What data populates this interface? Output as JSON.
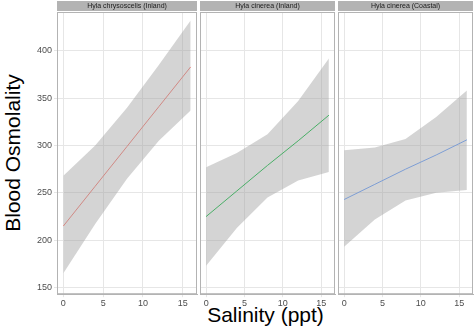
{
  "x_label": "Salinity (ppt)",
  "y_label": "Blood Osmolality",
  "chart_data": [
    {
      "type": "line",
      "title": "Hyla chrysoscelis (Inland)",
      "x": [
        0,
        4,
        8,
        12,
        16
      ],
      "values": [
        215,
        257,
        299,
        341,
        383
      ],
      "lower": [
        165,
        217,
        265,
        305,
        337
      ],
      "upper": [
        268,
        300,
        340,
        385,
        432
      ],
      "color": "#F8766D",
      "xlim": [
        -0.8,
        16.8
      ],
      "ylim": [
        143,
        441
      ],
      "xticks": [
        0,
        5,
        10,
        15
      ],
      "yticks": [
        150,
        200,
        250,
        300,
        350,
        400
      ],
      "grid": true
    },
    {
      "type": "line",
      "title": "Hyla cinerea (Inland)",
      "x": [
        0,
        4,
        8,
        12,
        16
      ],
      "values": [
        225,
        252,
        279,
        305,
        332
      ],
      "lower": [
        173,
        213,
        245,
        263,
        272
      ],
      "upper": [
        277,
        292,
        312,
        347,
        392
      ],
      "color": "#00BA38",
      "xlim": [
        -0.8,
        16.8
      ],
      "ylim": [
        143,
        441
      ],
      "xticks": [
        0,
        5,
        10,
        15
      ],
      "yticks": [
        150,
        200,
        250,
        300,
        350,
        400
      ],
      "grid": true,
      "tick_labels": "x"
    },
    {
      "type": "line",
      "title": "Hyla cinerea (Coastal)",
      "x": [
        0,
        4,
        8,
        12,
        16
      ],
      "values": [
        243,
        259,
        275,
        290,
        306
      ],
      "lower": [
        193,
        222,
        242,
        250,
        253
      ],
      "upper": [
        295,
        298,
        307,
        330,
        358
      ],
      "color": "#619CFF",
      "xlim": [
        -0.8,
        16.8
      ],
      "ylim": [
        143,
        441
      ],
      "xticks": [
        0,
        5,
        10,
        15
      ],
      "yticks": [
        150,
        200,
        250,
        300,
        350,
        400
      ],
      "grid": true,
      "tick_labels": "x"
    }
  ]
}
